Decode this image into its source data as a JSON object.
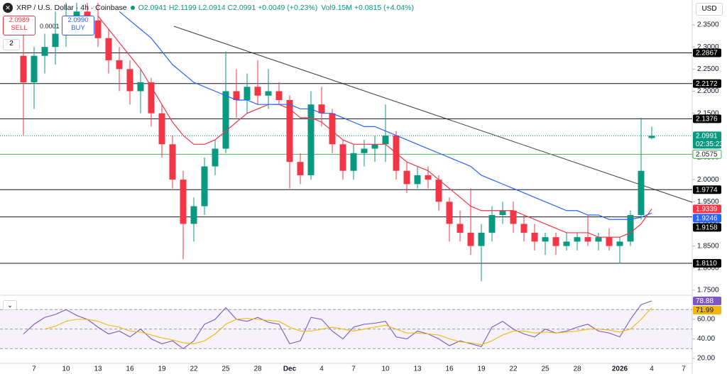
{
  "header": {
    "symbol": "XRP / U.S. Dollar · 4h · Coinbase",
    "ohlc": "O2.0941 H2.1199 L2.0914 C2.0991 +0.0049 (+0.23%)",
    "volume": "Vol9.15M +0.0815 (+4.04%)",
    "indicators": "2"
  },
  "trade": {
    "sell_price": "2.0989",
    "sell_label": "SELL",
    "spread": "0.0001",
    "buy_price": "2.0990",
    "buy_label": "BUY"
  },
  "chart_data": [
    {
      "type": "candlestick",
      "currency": "USD",
      "countdown": "02:35:23",
      "categories": [
        null,
        "7",
        null,
        null,
        "10",
        null,
        null,
        "13",
        null,
        null,
        "16",
        null,
        null,
        "19",
        null,
        null,
        "22",
        null,
        null,
        "25",
        null,
        null,
        "28",
        null,
        null,
        "Dec",
        null,
        null,
        "4",
        null,
        null,
        "7",
        null,
        null,
        "10",
        null,
        null,
        "13",
        null,
        null,
        "16",
        null,
        null,
        "19",
        null,
        null,
        "22",
        null,
        null,
        "25",
        null,
        null,
        "28",
        null,
        null,
        null,
        "2026",
        null,
        null,
        "4",
        null,
        null,
        "7"
      ],
      "open": [
        2.28,
        2.22,
        2.28,
        2.3,
        2.33,
        2.36,
        2.38,
        2.36,
        2.32,
        2.27,
        2.25,
        2.2,
        2.22,
        2.15,
        2.08,
        2.0,
        1.9,
        1.94,
        2.03,
        2.07,
        2.2,
        2.18,
        2.21,
        2.19,
        2.2,
        2.18,
        2.04,
        2.01,
        2.17,
        2.15,
        2.08,
        2.02,
        2.06,
        2.07,
        2.08,
        2.1,
        2.02,
        1.99,
        2.01,
        2.0,
        1.95,
        1.9,
        1.88,
        1.85,
        1.88,
        1.92,
        1.93,
        1.9,
        1.88,
        1.86,
        1.87,
        1.85,
        1.86,
        1.87,
        1.86,
        1.87,
        1.85,
        1.86,
        1.92,
        2.0941,
        null,
        null,
        null
      ],
      "high": [
        2.33,
        2.3,
        2.33,
        2.38,
        2.4,
        2.4,
        2.4,
        2.4,
        2.34,
        2.3,
        2.27,
        2.25,
        2.23,
        2.17,
        2.1,
        2.02,
        1.96,
        2.05,
        2.09,
        2.29,
        2.25,
        2.24,
        2.27,
        2.25,
        2.22,
        2.19,
        2.06,
        2.2,
        2.21,
        2.16,
        2.09,
        2.08,
        2.09,
        2.1,
        2.17,
        2.11,
        2.04,
        2.03,
        2.03,
        2.01,
        1.96,
        1.93,
        1.98,
        1.9,
        1.94,
        1.95,
        1.95,
        1.92,
        1.9,
        1.88,
        1.88,
        1.88,
        1.88,
        1.92,
        1.88,
        1.89,
        1.87,
        1.93,
        2.14,
        2.1199,
        null,
        null,
        null
      ],
      "low": [
        2.1,
        2.16,
        2.24,
        2.26,
        2.3,
        2.33,
        2.34,
        2.3,
        2.24,
        2.2,
        2.17,
        2.15,
        2.12,
        2.05,
        1.98,
        1.82,
        1.86,
        1.92,
        2.01,
        2.06,
        2.14,
        2.15,
        2.17,
        2.16,
        2.17,
        1.98,
        1.99,
        2.0,
        2.12,
        2.06,
        2.0,
        2.0,
        2.03,
        2.04,
        2.04,
        2.0,
        1.97,
        1.98,
        1.98,
        1.93,
        1.86,
        1.86,
        1.83,
        1.77,
        1.86,
        1.9,
        1.88,
        1.86,
        1.84,
        1.83,
        1.83,
        1.84,
        1.84,
        1.85,
        1.84,
        1.84,
        1.81,
        1.85,
        1.91,
        2.0914,
        null,
        null,
        null
      ],
      "close": [
        2.22,
        2.28,
        2.3,
        2.33,
        2.36,
        2.38,
        2.36,
        2.32,
        2.27,
        2.25,
        2.2,
        2.22,
        2.15,
        2.08,
        2.0,
        1.9,
        1.94,
        2.03,
        2.07,
        2.2,
        2.18,
        2.21,
        2.19,
        2.2,
        2.18,
        2.04,
        2.01,
        2.17,
        2.15,
        2.08,
        2.02,
        2.06,
        2.07,
        2.08,
        2.1,
        2.02,
        1.99,
        2.01,
        2.0,
        1.95,
        1.9,
        1.88,
        1.85,
        1.88,
        1.92,
        1.93,
        1.9,
        1.88,
        1.86,
        1.87,
        1.85,
        1.86,
        1.87,
        1.86,
        1.87,
        1.85,
        1.86,
        1.92,
        2.02,
        2.0991,
        null,
        null,
        null
      ],
      "up_color": "#089981",
      "down_color": "#f23645",
      "series": [
        {
          "color": "#f23645",
          "values": [
            null,
            null,
            null,
            null,
            null,
            null,
            null,
            2.37,
            2.34,
            2.31,
            2.28,
            2.25,
            2.21,
            2.17,
            2.13,
            2.1,
            2.08,
            2.08,
            2.09,
            2.11,
            2.13,
            2.15,
            2.16,
            2.17,
            2.17,
            2.16,
            2.14,
            2.14,
            2.13,
            2.11,
            2.09,
            2.08,
            2.08,
            2.08,
            2.08,
            2.06,
            2.04,
            2.03,
            2.02,
            2.0,
            1.98,
            1.96,
            1.94,
            1.93,
            1.93,
            1.93,
            1.93,
            1.92,
            1.91,
            1.9,
            1.89,
            1.88,
            1.88,
            1.88,
            1.87,
            1.87,
            1.87,
            1.88,
            1.9,
            1.9339,
            null,
            null,
            null
          ]
        },
        {
          "color": "#2962ff",
          "values": [
            null,
            null,
            null,
            null,
            null,
            null,
            null,
            null,
            null,
            2.38,
            2.36,
            2.34,
            2.32,
            2.29,
            2.26,
            2.24,
            2.22,
            2.21,
            2.2,
            2.19,
            2.18,
            2.18,
            2.17,
            2.17,
            2.17,
            2.17,
            2.16,
            2.16,
            2.15,
            2.15,
            2.14,
            2.13,
            2.12,
            2.12,
            2.11,
            2.1,
            2.09,
            2.08,
            2.07,
            2.06,
            2.05,
            2.04,
            2.03,
            2.01,
            2.0,
            1.99,
            1.98,
            1.97,
            1.96,
            1.95,
            1.94,
            1.93,
            1.93,
            1.92,
            1.92,
            1.91,
            1.91,
            1.91,
            1.915,
            1.9246,
            null,
            null,
            null
          ]
        }
      ],
      "levels": [
        2.2867,
        2.2172,
        2.1376,
        1.9774,
        1.9158,
        {
          "value": 1.811,
          "label": "1.8110"
        }
      ],
      "support_line": 2.0575,
      "ylim": [
        1.7403,
        2.4062
      ],
      "yticks": [
        {
          "value": 2.35,
          "label": "2.3500"
        },
        {
          "value": 2.3,
          "label": "2.3000"
        },
        {
          "value": 2.25,
          "label": "2.2500"
        },
        {
          "value": 2.2,
          "label": "2.2000"
        },
        {
          "value": 2.15,
          "label": "2.1500"
        },
        {
          "value": 2.1,
          "label": "2.1000"
        },
        {
          "value": 2.05,
          "label": "2.0500"
        },
        {
          "value": 2.0,
          "label": "2.0000"
        },
        {
          "value": 1.95,
          "label": "1.9500"
        },
        {
          "value": 1.9,
          "label": "1.9000"
        },
        {
          "value": 1.85,
          "label": "1.8500"
        },
        {
          "value": 1.8,
          "label": "1.8000"
        },
        {
          "value": 1.75,
          "label": "1.7500"
        }
      ]
    },
    {
      "type": "line",
      "series": [
        {
          "color": "#7e57c2",
          "values": [
            45,
            55,
            62,
            65,
            70,
            64,
            60,
            52,
            45,
            48,
            42,
            50,
            40,
            35,
            38,
            30,
            38,
            55,
            60,
            72,
            60,
            58,
            62,
            57,
            55,
            35,
            38,
            62,
            60,
            48,
            40,
            52,
            55,
            56,
            58,
            42,
            40,
            48,
            45,
            40,
            33,
            38,
            35,
            32,
            52,
            58,
            50,
            45,
            42,
            50,
            46,
            48,
            52,
            55,
            48,
            46,
            42,
            60,
            75,
            78.88,
            null,
            null,
            null
          ]
        },
        {
          "color": "#f2b705",
          "values": [
            null,
            null,
            50,
            53,
            58,
            60,
            60,
            58,
            54,
            52,
            48,
            47,
            44,
            41,
            39,
            36,
            35,
            38,
            45,
            55,
            60,
            61,
            60,
            59,
            58,
            52,
            48,
            48,
            50,
            52,
            50,
            48,
            50,
            52,
            54,
            50,
            46,
            46,
            45,
            44,
            40,
            37,
            36,
            34,
            38,
            44,
            48,
            48,
            46,
            47,
            46,
            47,
            48,
            50,
            50,
            49,
            47,
            50,
            60,
            71.99,
            null,
            null,
            null
          ]
        }
      ],
      "levels": [
        70,
        50,
        30
      ],
      "ylim": [
        11.3,
        81.8
      ],
      "yticks": [
        {
          "value": 60,
          "label": "60.00"
        },
        {
          "value": 40,
          "label": "40.00"
        },
        {
          "value": 20,
          "label": "20.00"
        }
      ]
    }
  ]
}
